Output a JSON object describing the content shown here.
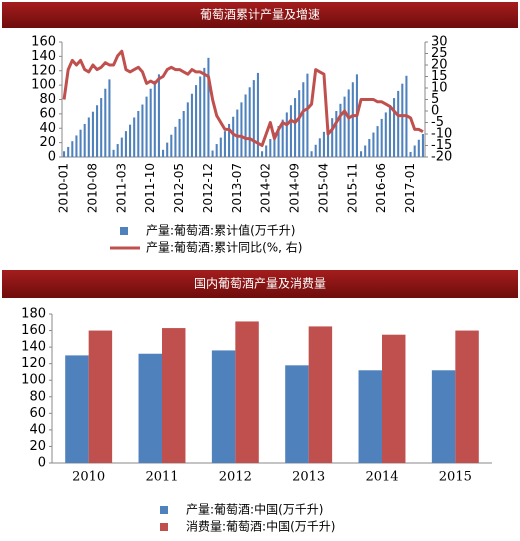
{
  "chart_data": [
    {
      "type": "combo",
      "title": "葡萄酒累计产量及增速",
      "categories": [
        "2010-01",
        null,
        null,
        null,
        null,
        null,
        null,
        "2010-08",
        null,
        null,
        null,
        null,
        null,
        null,
        "2011-03",
        null,
        null,
        null,
        null,
        null,
        null,
        "2011-10",
        null,
        null,
        null,
        null,
        null,
        null,
        "2012-05",
        null,
        null,
        null,
        null,
        null,
        null,
        "2012-12",
        null,
        null,
        null,
        null,
        null,
        null,
        "2013-07",
        null,
        null,
        null,
        null,
        null,
        null,
        "2014-02",
        null,
        null,
        null,
        null,
        null,
        null,
        "2014-09",
        null,
        null,
        null,
        null,
        null,
        null,
        "2015-04",
        null,
        null,
        null,
        null,
        null,
        null,
        "2015-11",
        null,
        null,
        null,
        null,
        null,
        null,
        "2016-06",
        null,
        null,
        null,
        null,
        null,
        null,
        "2017-01",
        null,
        null,
        null
      ],
      "series": [
        {
          "name": "产量:葡萄酒:累计值(万千升)",
          "type": "bar",
          "color": "#4f81bd",
          "values": [
            8,
            14,
            22,
            30,
            38,
            46,
            55,
            63,
            72,
            82,
            95,
            108,
            10,
            18,
            27,
            36,
            45,
            55,
            64,
            73,
            84,
            95,
            106,
            115,
            10,
            20,
            31,
            42,
            53,
            64,
            76,
            88,
            100,
            112,
            124,
            138,
            9,
            18,
            27,
            36,
            46,
            56,
            66,
            76,
            87,
            97,
            107,
            117,
            8,
            16,
            25,
            34,
            43,
            52,
            62,
            72,
            82,
            93,
            104,
            116,
            8,
            17,
            26,
            35,
            44,
            54,
            64,
            74,
            84,
            94,
            104,
            115,
            8,
            16,
            25,
            34,
            43,
            53,
            62,
            72,
            82,
            92,
            102,
            113,
            7,
            16,
            24,
            32
          ]
        },
        {
          "name": "产量:葡萄酒:累计同比(%, 右)",
          "type": "line",
          "axis": "y2",
          "color": "#c0504d",
          "values": [
            5,
            18,
            22,
            20,
            22,
            18,
            17,
            20,
            18,
            19,
            21,
            20,
            20,
            24,
            26,
            18,
            17,
            18,
            19,
            17,
            12,
            13,
            12,
            14,
            15,
            18,
            19,
            18,
            18,
            17,
            16,
            18,
            17,
            17,
            16,
            15,
            5,
            -2,
            -5,
            -8,
            -8,
            -10,
            -11,
            -11,
            -12,
            -12,
            -13,
            -14,
            -15,
            -10,
            -5,
            -12,
            -8,
            -5,
            -6,
            -4,
            -5,
            -3,
            0,
            1,
            3,
            18,
            17,
            16,
            -10,
            -8,
            -5,
            -2,
            0,
            -3,
            -2,
            -2,
            5,
            5,
            5,
            5,
            4,
            4,
            3,
            2,
            0,
            -2,
            -2,
            -2,
            -3,
            -8,
            -8,
            -9
          ]
        }
      ],
      "ylim": [
        0,
        160
      ],
      "yticks": [
        0,
        20,
        40,
        60,
        80,
        100,
        120,
        140,
        160
      ],
      "y2lim": [
        -20,
        30
      ],
      "y2ticks": [
        -20,
        -15,
        -10,
        -5,
        0,
        5,
        10,
        15,
        20,
        25,
        30
      ],
      "grid": false,
      "legend": "bottom"
    },
    {
      "type": "bar",
      "title": "国内葡萄酒产量及消费量",
      "categories": [
        "2010",
        "2011",
        "2012",
        "2013",
        "2014",
        "2015"
      ],
      "series": [
        {
          "name": "产量:葡萄酒:中国(万千升)",
          "color": "#4f81bd",
          "values": [
            130,
            132,
            136,
            118,
            112,
            112
          ]
        },
        {
          "name": "消费量:葡萄酒:中国(万千升)",
          "color": "#c0504d",
          "values": [
            160,
            163,
            171,
            165,
            155,
            160
          ]
        }
      ],
      "ylim": [
        0,
        180
      ],
      "yticks": [
        0,
        20,
        40,
        60,
        80,
        100,
        120,
        140,
        160,
        180
      ],
      "grid": false,
      "legend": "bottom"
    }
  ]
}
